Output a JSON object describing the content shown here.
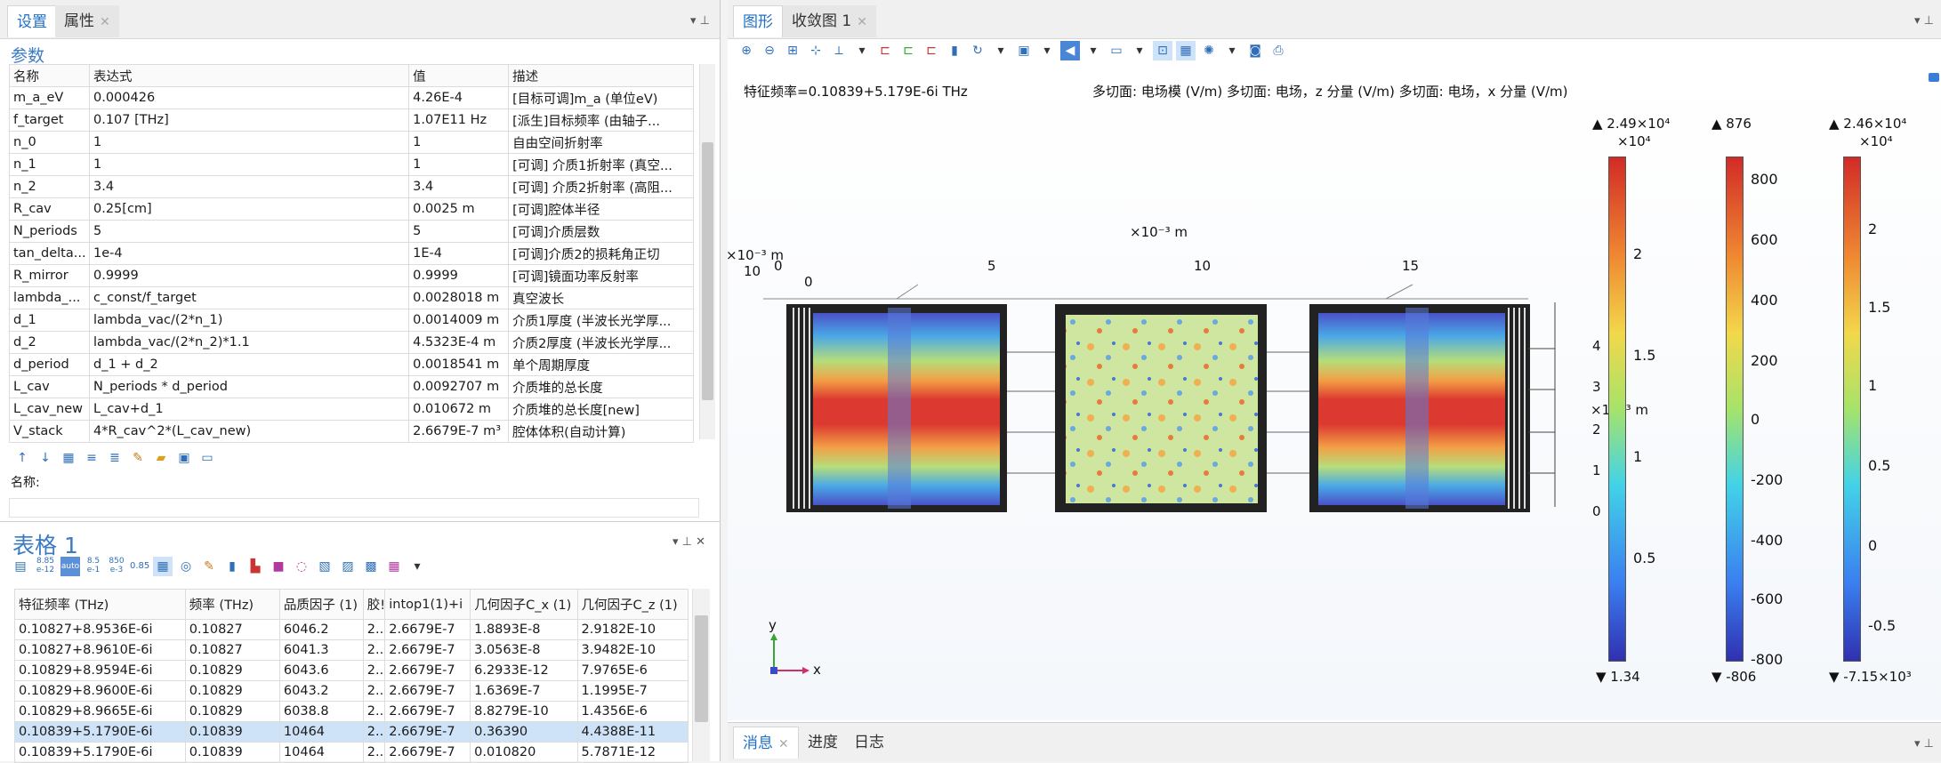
{
  "left_top": {
    "tabs": [
      "设置",
      "属性"
    ],
    "section_title": "参数",
    "columns": [
      "名称",
      "表达式",
      "值",
      "描述"
    ],
    "rows": [
      [
        "m_a_eV",
        "0.000426",
        "4.26E-4",
        "[目标可调]m_a (单位eV)"
      ],
      [
        "f_target",
        "0.107 [THz]",
        "1.07E11 Hz",
        "[派生]目标频率 (由轴子..."
      ],
      [
        "n_0",
        "1",
        "1",
        "自由空间折射率"
      ],
      [
        "n_1",
        "1",
        "1",
        "[可调] 介质1折射率 (真空..."
      ],
      [
        "n_2",
        "3.4",
        "3.4",
        "[可调] 介质2折射率 (高阻..."
      ],
      [
        "R_cav",
        "0.25[cm]",
        "0.0025 m",
        "[可调]腔体半径"
      ],
      [
        "N_periods",
        "5",
        "5",
        "[可调]介质层数"
      ],
      [
        "tan_delta...",
        "1e-4",
        "1E-4",
        "[可调]介质2的损耗角正切"
      ],
      [
        "R_mirror",
        "0.9999",
        "0.9999",
        "[可调]镜面功率反射率"
      ],
      [
        "lambda_...",
        "c_const/f_target",
        "0.0028018 m",
        "真空波长"
      ],
      [
        "d_1",
        "lambda_vac/(2*n_1)",
        "0.0014009 m",
        "介质1厚度 (半波长光学厚..."
      ],
      [
        "d_2",
        "lambda_vac/(2*n_2)*1.1",
        "4.5323E-4 m",
        "介质2厚度 (半波长光学厚..."
      ],
      [
        "d_period",
        "d_1 + d_2",
        "0.0018541 m",
        "单个周期厚度"
      ],
      [
        "L_cav",
        "N_periods * d_period",
        "0.0092707 m",
        "介质堆的总长度"
      ],
      [
        "L_cav_new",
        "L_cav+d_1",
        "0.010672 m",
        "介质堆的总长度[new]"
      ],
      [
        "V_stack",
        "4*R_cav^2*(L_cav_new)",
        "2.6679E-7 m³",
        "腔体体积(自动计算)"
      ]
    ],
    "name_label": "名称:"
  },
  "left_bottom": {
    "title": "表格 1",
    "toolbar_labels": [
      "8.85 e-12",
      "8.5 e-1",
      "850 e-3",
      "0.85"
    ],
    "columns": [
      "特征频率 (THz)",
      "频率 (THz)",
      "品质因子 (1)",
      "胶!",
      "intop1(1)+i",
      "几何因子C_x (1)",
      "几何因子C_z (1)"
    ],
    "rows": [
      [
        "0.10827+8.9536E-6i",
        "0.10827",
        "6046.2",
        "2....",
        "2.6679E-7",
        "1.8893E-8",
        "2.9182E-10"
      ],
      [
        "0.10827+8.9610E-6i",
        "0.10827",
        "6041.3",
        "2....",
        "2.6679E-7",
        "3.0563E-8",
        "3.9482E-10"
      ],
      [
        "0.10829+8.9594E-6i",
        "0.10829",
        "6043.6",
        "2....",
        "2.6679E-7",
        "6.2933E-12",
        "7.9765E-6"
      ],
      [
        "0.10829+8.9600E-6i",
        "0.10829",
        "6043.2",
        "2....",
        "2.6679E-7",
        "1.6369E-7",
        "1.1995E-7"
      ],
      [
        "0.10829+8.9665E-6i",
        "0.10829",
        "6038.8",
        "2....",
        "2.6679E-7",
        "8.8279E-10",
        "1.4356E-6"
      ],
      [
        "0.10839+5.1790E-6i",
        "0.10839",
        "10464",
        "2....",
        "2.6679E-7",
        "0.36390",
        "4.4388E-11"
      ],
      [
        "0.10839+5.1790E-6i",
        "0.10839",
        "10464",
        "2....",
        "2.6679E-7",
        "0.010820",
        "5.7871E-12"
      ]
    ],
    "selected_row": 5
  },
  "right_top": {
    "tabs": [
      "图形",
      "收敛图 1"
    ],
    "eigen_text": "特征频率=0.10839+5.179E-6i THz",
    "plot_titles": "多切面: 电场模 (V/m)  多切面: 电场，z 分量 (V/m)  多切面: 电场，x 分量 (V/m)",
    "axis_unit_top": "×10⁻³ m",
    "axis_unit_left": "×10⁻³ m",
    "axis_unit_right": "×10⁻³ m",
    "x_ticks": [
      "0",
      "5",
      "10",
      "15"
    ],
    "left_tick": "10",
    "left_tick2": "0",
    "z_ticks": [
      "4",
      "3",
      "2",
      "1",
      "0"
    ],
    "axis_y": "y",
    "axis_x": "x",
    "colorbars": [
      {
        "max": "▲ 2.49×10⁴",
        "exp": "×10⁴",
        "min": "▼ 1.34",
        "ticks": [
          "2",
          "1.5",
          "1",
          "0.5"
        ]
      },
      {
        "max": "▲ 876",
        "exp": "",
        "min": "▼ -806",
        "ticks": [
          "800",
          "600",
          "400",
          "200",
          "0",
          "-200",
          "-400",
          "-600",
          "-800"
        ]
      },
      {
        "max": "▲ 2.46×10⁴",
        "exp": "×10⁴",
        "min": "▼ -7.15×10³",
        "ticks": [
          "2",
          "1.5",
          "1",
          "0.5",
          "0",
          "-0.5"
        ]
      }
    ]
  },
  "right_bottom": {
    "tabs": [
      "消息",
      "进度",
      "日志"
    ]
  },
  "colors": {
    "accent": "#1f6fc5",
    "selected": "#cfe3f8"
  }
}
